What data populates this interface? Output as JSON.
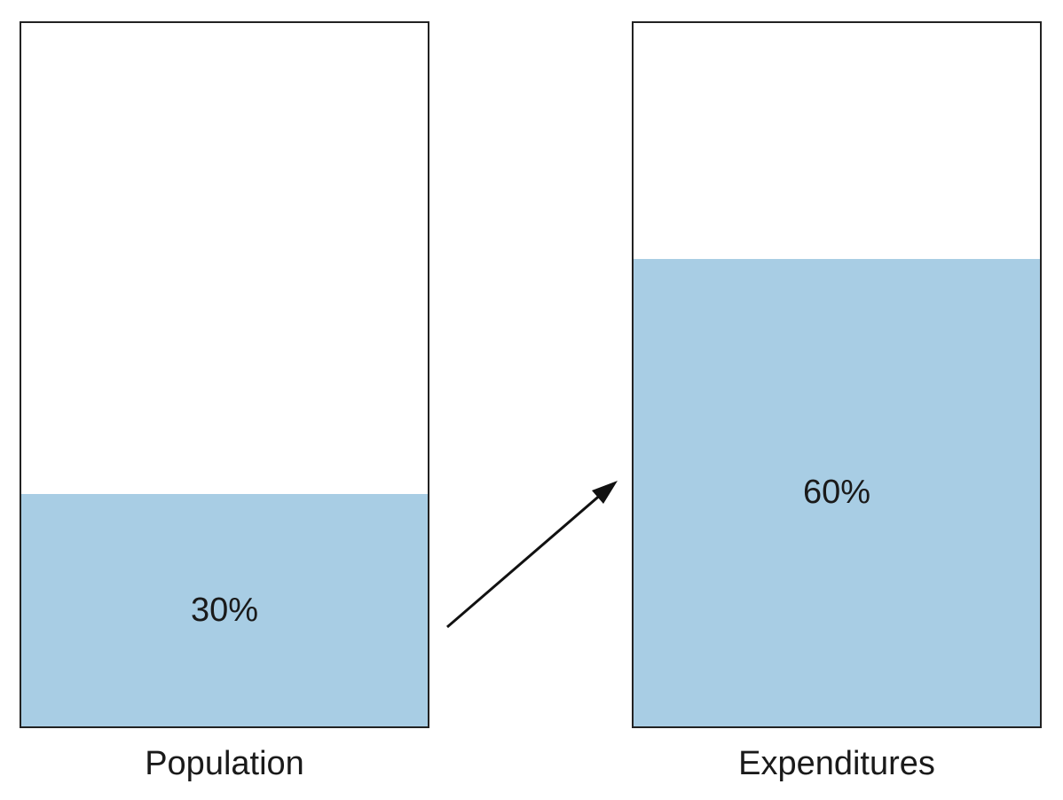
{
  "bars": [
    {
      "label": "Population",
      "value_label": "30%",
      "fraction": 0.33
    },
    {
      "label": "Expenditures",
      "value_label": "60%",
      "fraction": 0.665
    }
  ],
  "colors": {
    "fill": "#a8cde4",
    "border": "#222222",
    "arrow": "#111111"
  },
  "icons": {
    "connector": "arrow-up-right-icon"
  }
}
